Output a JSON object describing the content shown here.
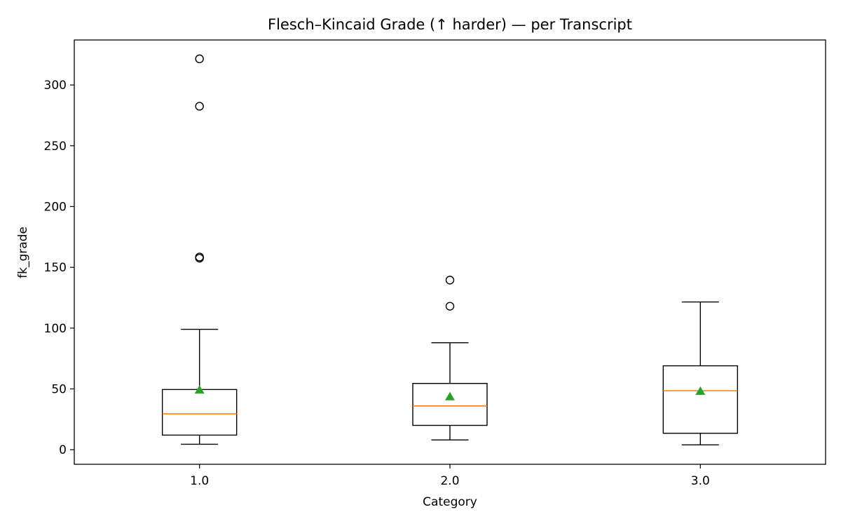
{
  "chart_data": {
    "type": "box",
    "title": "Flesch–Kincaid Grade (↑ harder) — per Transcript",
    "xlabel": "Category",
    "ylabel": "fk_grade",
    "categories": [
      "1.0",
      "2.0",
      "3.0"
    ],
    "yticks": [
      0,
      50,
      100,
      150,
      200,
      250,
      300
    ],
    "ylim": [
      -12,
      337
    ],
    "grid": false,
    "boxes": [
      {
        "category": "1.0",
        "whisker_low": 4.5,
        "q1": 12,
        "median": 29.5,
        "q3": 49.5,
        "whisker_high": 99,
        "mean": 49,
        "outliers": [
          157.5,
          158.5,
          282.5,
          321.5
        ]
      },
      {
        "category": "2.0",
        "whisker_low": 8,
        "q1": 20,
        "median": 36,
        "q3": 54.5,
        "whisker_high": 88,
        "mean": 43.5,
        "outliers": [
          118,
          139.5
        ]
      },
      {
        "category": "3.0",
        "whisker_low": 4,
        "q1": 13.5,
        "median": 48.5,
        "q3": 69,
        "whisker_high": 121.5,
        "mean": 48,
        "outliers": []
      }
    ],
    "colors": {
      "box": "#000000",
      "median": "#ff7f0e",
      "mean": "#2ca02c",
      "outlier_edge": "#000000"
    }
  }
}
